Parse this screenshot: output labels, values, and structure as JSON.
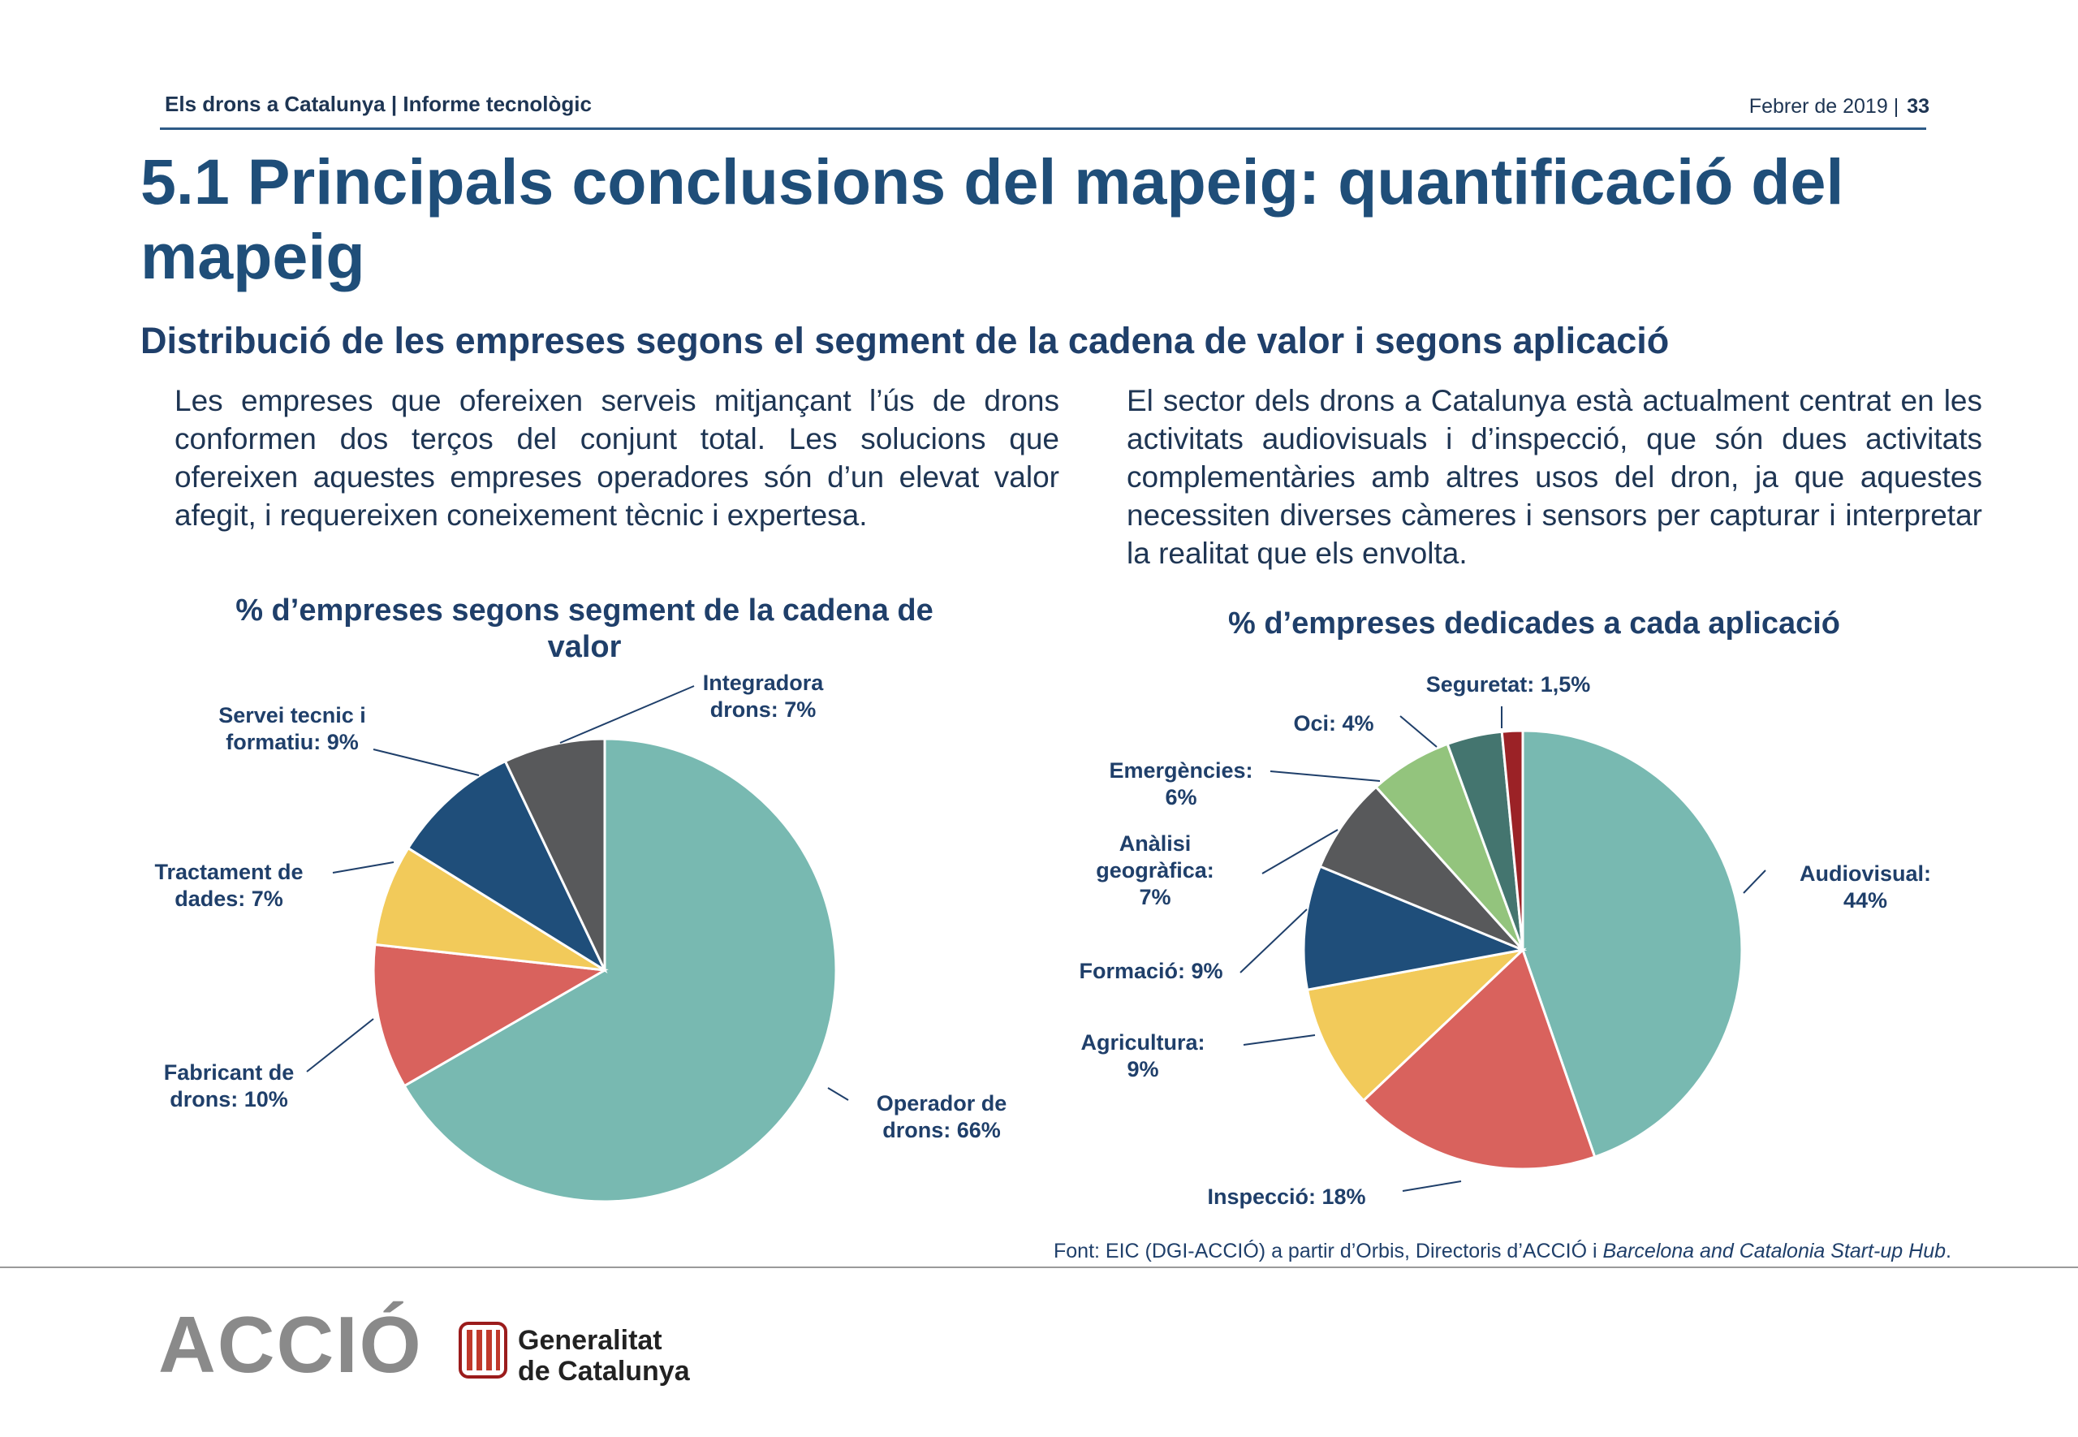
{
  "header": {
    "left": "Els drons a Catalunya | Informe tecnològic",
    "date": "Febrer de 2019  |",
    "page": "33"
  },
  "title": "5.1 Principals conclusions del mapeig: quantificació del mapeig",
  "subtitle": "Distribució de les empreses segons el segment de la cadena de valor i segons aplicació",
  "para_left": "Les empreses que ofereixen serveis mitjançant l’ús de drons conformen dos terços del conjunt total. Les solucions que ofereixen aquestes empreses operadores són d’un elevat valor afegit, i requereixen coneixement tècnic i expertesa.",
  "para_right": "El sector dels drons a Catalunya està actualment centrat en les activitats audiovisuals i d’inspecció, que són dues activitats complementàries amb altres usos del dron, ja que aquestes necessiten diverses càmeres i sensors per capturar i interpretar la realitat que els envolta.",
  "chart_data": [
    {
      "type": "pie",
      "title": "% d’empreses segons segment de la cadena de valor",
      "slices": [
        {
          "label_lines": [
            "Operador de",
            "drons: 66%"
          ],
          "value": 66,
          "color": "#78b9b1"
        },
        {
          "label_lines": [
            "Fabricant de",
            "drons: 10%"
          ],
          "value": 10,
          "color": "#d9625d"
        },
        {
          "label_lines": [
            "Tractament de",
            "dades: 7%"
          ],
          "value": 7,
          "color": "#f2ca5a"
        },
        {
          "label_lines": [
            "Servei tecnic i",
            "formatiu: 9%"
          ],
          "value": 9,
          "color": "#1f4e7a"
        },
        {
          "label_lines": [
            "Integradora",
            "drons: 7%"
          ],
          "value": 7,
          "color": "#58595b"
        }
      ]
    },
    {
      "type": "pie",
      "title": "% d’empreses dedicades a cada aplicació",
      "slices": [
        {
          "label_lines": [
            "Audiovisual:",
            "44%"
          ],
          "value": 44,
          "color": "#78b9b1"
        },
        {
          "label_lines": [
            "Inspecció: 18%"
          ],
          "value": 18,
          "color": "#d9625d"
        },
        {
          "label_lines": [
            "Agricultura:",
            "9%"
          ],
          "value": 9,
          "color": "#f2ca5a"
        },
        {
          "label_lines": [
            "Formació: 9%"
          ],
          "value": 9,
          "color": "#1f4e7a"
        },
        {
          "label_lines": [
            "Anàlisi",
            "geogràfica:",
            "7%"
          ],
          "value": 7,
          "color": "#58595b"
        },
        {
          "label_lines": [
            "Emergències:",
            "6%"
          ],
          "value": 6,
          "color": "#93c47d"
        },
        {
          "label_lines": [
            "Oci: 4%"
          ],
          "value": 4,
          "color": "#44756f"
        },
        {
          "label_lines": [
            "Seguretat: 1,5%"
          ],
          "value": 1.5,
          "color": "#9b2226"
        }
      ]
    }
  ],
  "source": {
    "text": "Font: EIC (DGI-ACCIÓ) a partir d’Orbis, Directoris d’ACCIÓ i ",
    "italic": "Barcelona and Catalonia Start-up Hub",
    "end": "."
  },
  "footer": {
    "accio_logo": "ACCIÓ",
    "gen_line1": "Generalitat",
    "gen_line2": "de Catalunya"
  }
}
